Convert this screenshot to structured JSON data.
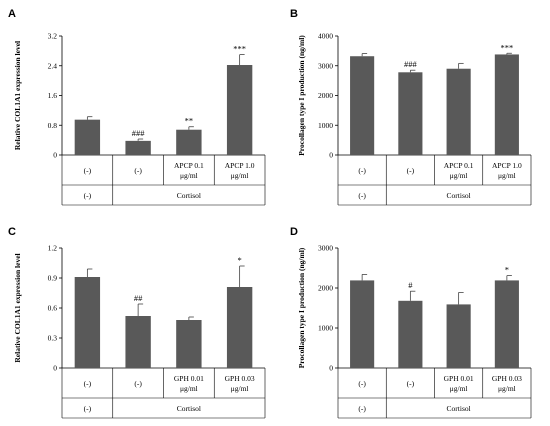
{
  "chart_data": [
    {
      "panel": "A",
      "type": "bar",
      "ylabel": "Relative COL1A1 expression level",
      "ylim": [
        0,
        3.2
      ],
      "yticks": [
        "0",
        "0.8",
        "1.6",
        "2.4",
        "3.2"
      ],
      "categories": [
        [
          "(-)"
        ],
        [
          "(-)"
        ],
        [
          "APCP 0.1",
          "μg/ml"
        ],
        [
          "APCP 1.0",
          "μg/ml"
        ]
      ],
      "values": [
        0.95,
        0.38,
        0.68,
        2.42
      ],
      "errors": [
        0.08,
        0.05,
        0.08,
        0.28
      ],
      "significance": [
        "",
        "###",
        "**",
        "***"
      ],
      "groups": [
        "(-)",
        "Cortisol"
      ],
      "bar_color": "#595959"
    },
    {
      "panel": "B",
      "type": "bar",
      "ylabel": "Procollagen type I  production (ng/ml)",
      "ylim": [
        0,
        4000
      ],
      "yticks": [
        "0",
        "1000",
        "2000",
        "3000",
        "4000"
      ],
      "categories": [
        [
          "(-)"
        ],
        [
          "(-)"
        ],
        [
          "APCP 0.1",
          "μg/ml"
        ],
        [
          "APCP 1.0",
          "μg/ml"
        ]
      ],
      "values": [
        3320,
        2780,
        2900,
        3380
      ],
      "errors": [
        90,
        70,
        180,
        40
      ],
      "significance": [
        "",
        "###",
        "",
        "***"
      ],
      "groups": [
        "(-)",
        "Cortisol"
      ],
      "bar_color": "#595959"
    },
    {
      "panel": "C",
      "type": "bar",
      "ylabel": "Relative COL1A1 expression level",
      "ylim": [
        0,
        1.2
      ],
      "yticks": [
        "0",
        "0.3",
        "0.6",
        "0.9",
        "1.2"
      ],
      "categories": [
        [
          "(-)"
        ],
        [
          "(-)"
        ],
        [
          "GPH 0.01",
          "μg/ml"
        ],
        [
          "GPH 0.03",
          "μg/ml"
        ]
      ],
      "values": [
        0.91,
        0.52,
        0.48,
        0.81
      ],
      "errors": [
        0.08,
        0.12,
        0.03,
        0.21
      ],
      "significance": [
        "",
        "##",
        "",
        "*"
      ],
      "groups": [
        "(-)",
        "Cortisol"
      ],
      "bar_color": "#595959"
    },
    {
      "panel": "D",
      "type": "bar",
      "ylabel": "Procollagen type I  production (ng/ml)",
      "ylim": [
        0,
        3000
      ],
      "yticks": [
        "0",
        "1000",
        "2000",
        "3000"
      ],
      "categories": [
        [
          "(-)"
        ],
        [
          "(-)"
        ],
        [
          "GPH 0.01",
          "μg/ml"
        ],
        [
          "GPH 0.03",
          "μg/ml"
        ]
      ],
      "values": [
        2190,
        1680,
        1590,
        2190
      ],
      "errors": [
        150,
        240,
        300,
        120
      ],
      "significance": [
        "",
        "#",
        "",
        "*"
      ],
      "groups": [
        "(-)",
        "Cortisol"
      ],
      "bar_color": "#595959"
    }
  ]
}
